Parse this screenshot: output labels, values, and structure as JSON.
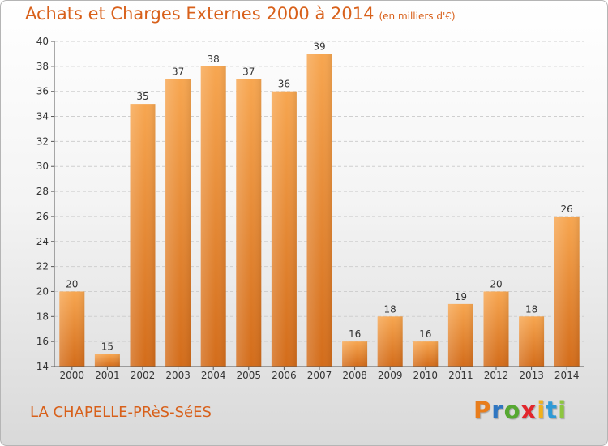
{
  "header": {
    "title": "Achats et Charges Externes 2000 à 2014",
    "subtitle": "(en milliers d'€)"
  },
  "footer": {
    "commune": "LA CHAPELLE-PRèS-SéES",
    "logo_letters": [
      "P",
      "r",
      "o",
      "x",
      "i",
      "t",
      "i"
    ],
    "logo_colors": [
      "#e87d1c",
      "#2f76c1",
      "#57a832",
      "#e2252b",
      "#f2b11a",
      "#2f9ad6",
      "#8dc63f"
    ]
  },
  "chart_data": {
    "type": "bar",
    "categories": [
      "2000",
      "2001",
      "2002",
      "2003",
      "2004",
      "2005",
      "2006",
      "2007",
      "2008",
      "2009",
      "2010",
      "2011",
      "2012",
      "2013",
      "2014"
    ],
    "values": [
      20,
      15,
      35,
      37,
      38,
      37,
      36,
      39,
      16,
      18,
      16,
      19,
      20,
      18,
      26
    ],
    "title": "Achats et Charges Externes 2000 à 2014",
    "subtitle": "(en milliers d'€)",
    "ylim": [
      14,
      40
    ],
    "yticks": [
      14,
      16,
      18,
      20,
      22,
      24,
      26,
      28,
      30,
      32,
      34,
      36,
      38,
      40
    ],
    "grid": true,
    "bar_color_light": "#f7a650",
    "bar_color_dark": "#d36c1a"
  }
}
